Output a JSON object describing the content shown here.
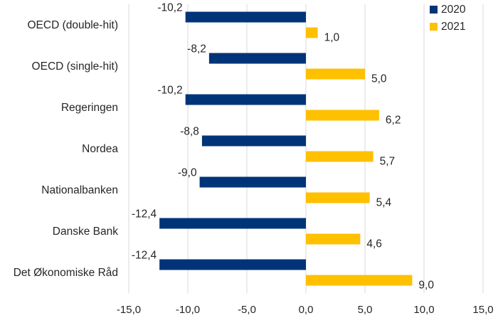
{
  "chart_data": {
    "type": "bar",
    "orientation": "horizontal",
    "categories": [
      "OECD (double-hit)",
      "OECD (single-hit)",
      "Regeringen",
      "Nordea",
      "Nationalbanken",
      "Danske Bank",
      "Det Økonomiske Råd"
    ],
    "series": [
      {
        "name": "2020",
        "color": "#003478",
        "values": [
          -10.2,
          -8.2,
          -10.2,
          -8.8,
          -9.0,
          -12.4,
          -12.4
        ],
        "labels": [
          "-10,2",
          "-8,2",
          "-10,2",
          "-8,8",
          "-9,0",
          "-12,4",
          "-12,4"
        ]
      },
      {
        "name": "2021",
        "color": "#FFC000",
        "values": [
          1.0,
          5.0,
          6.2,
          5.7,
          5.4,
          4.6,
          9.0
        ],
        "labels": [
          "1,0",
          "5,0",
          "6,2",
          "5,7",
          "5,4",
          "4,6",
          "9,0"
        ]
      }
    ],
    "xlim": [
      -15,
      15
    ],
    "xticks": [
      -15,
      -10,
      -5,
      0,
      5,
      10,
      15
    ],
    "xtick_labels": [
      "-15,0",
      "-10,0",
      "-5,0",
      "0,0",
      "5,0",
      "10,0",
      "15,0"
    ],
    "grid": "vertical",
    "legend_position": "top-right",
    "gridline_color": "#d9d9d9"
  }
}
